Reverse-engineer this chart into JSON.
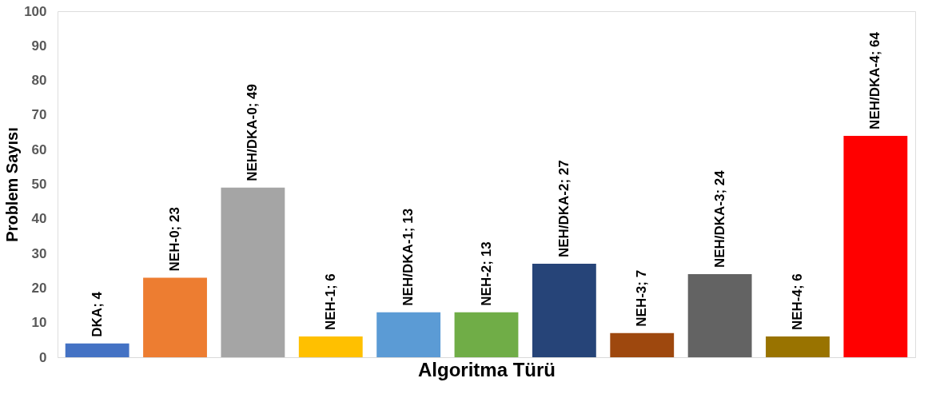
{
  "chart_data": {
    "type": "bar",
    "xlabel": "Algoritma Türü",
    "ylabel": "Problem Sayısı",
    "categories": [
      null,
      null,
      null,
      null,
      null,
      null,
      null,
      null,
      null,
      null,
      null
    ],
    "values": [
      4,
      23,
      49,
      6,
      13,
      13,
      27,
      7,
      24,
      6,
      64
    ],
    "colors": [
      "#4472c4",
      "#ed7d31",
      "#a5a5a5",
      "#ffc000",
      "#5b9bd5",
      "#70ad47",
      "#264478",
      "#9e480e",
      "#636363",
      "#997300",
      "#ff0000"
    ],
    "value_labels": [
      "DKA; 4",
      "NEH-0; 23",
      "NEH/DKA-0; 49",
      "NEH-1; 6",
      "NEH/DKA-1; 13",
      "NEH-2; 13",
      "NEH/DKA-2; 27",
      "NEH-3; 7",
      "NEH/DKA-3; 24",
      "NEH-4; 6",
      "NEH/DKA-4; 64"
    ],
    "ylim": [
      0,
      100
    ],
    "yticks": [
      0,
      10,
      20,
      30,
      40,
      50,
      60,
      70,
      80,
      90,
      100
    ],
    "grid": false
  }
}
